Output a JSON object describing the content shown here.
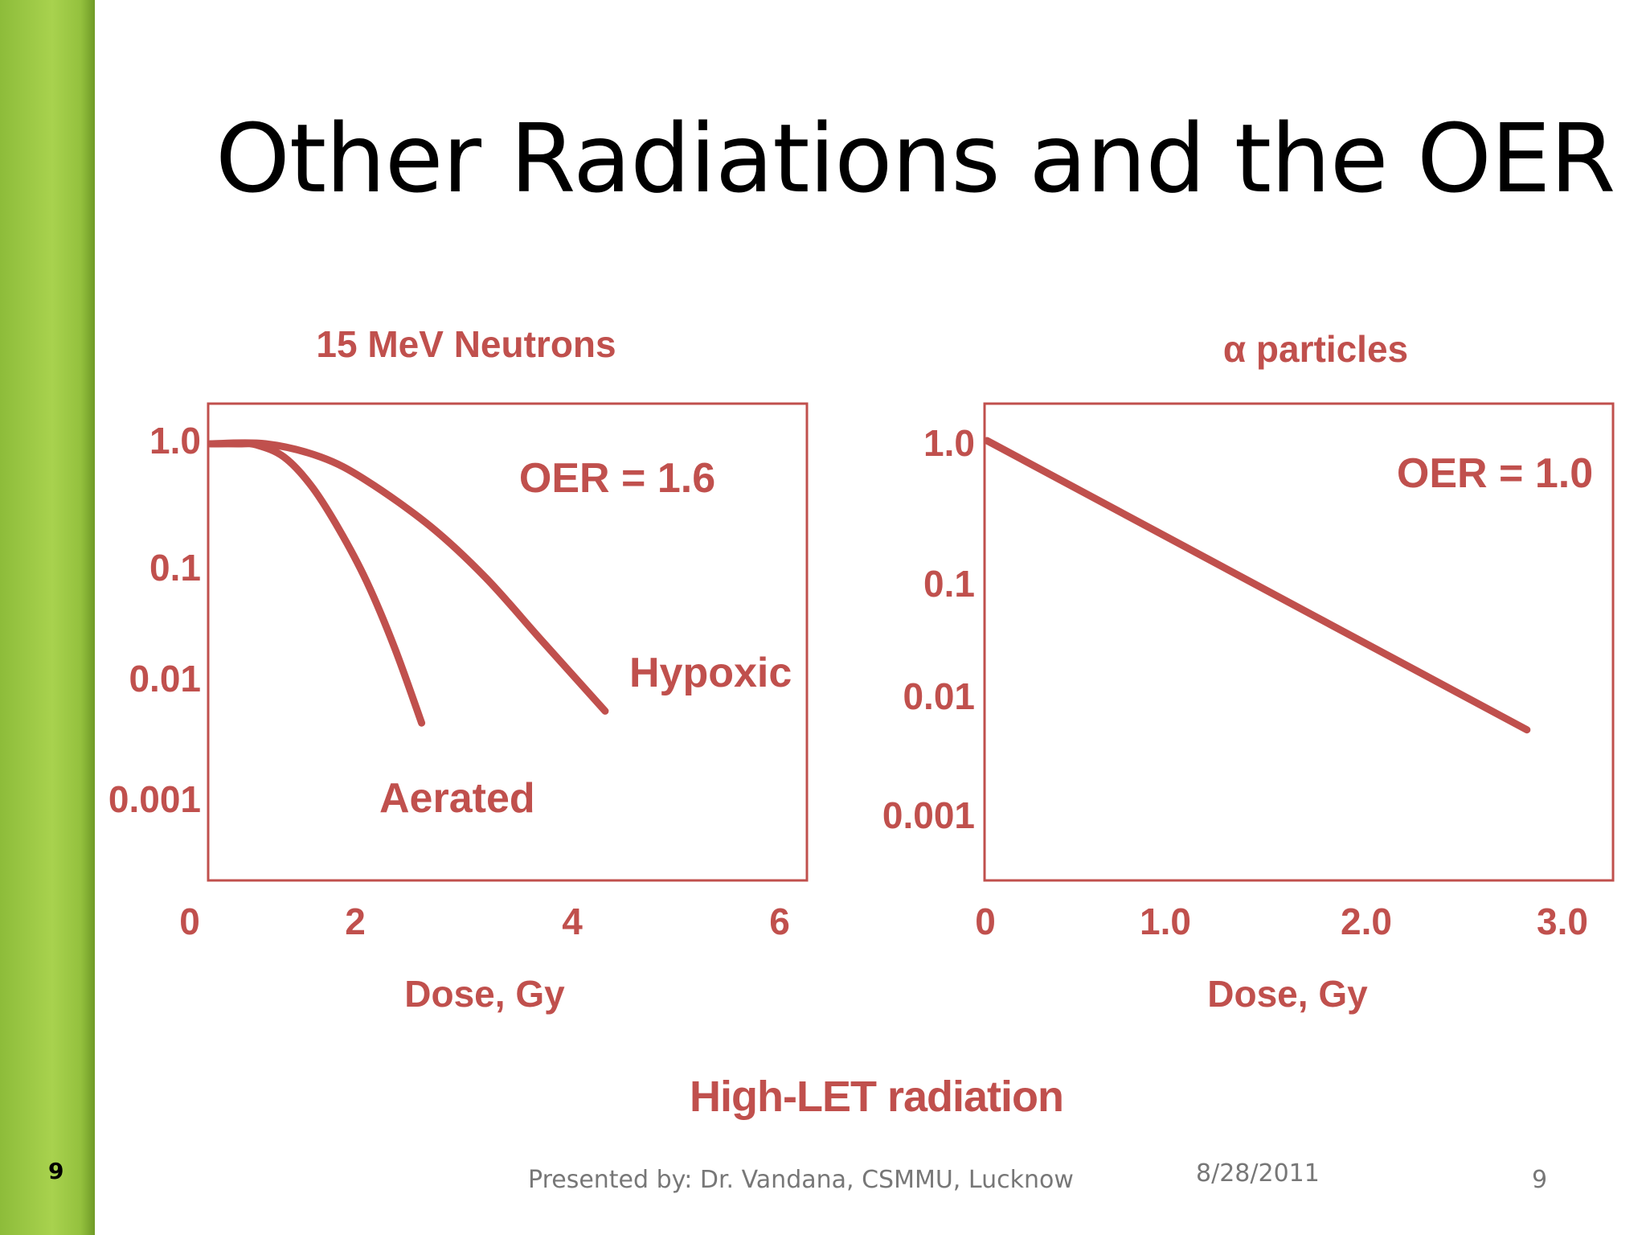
{
  "slide": {
    "title": "Other Radiations and the OER",
    "side_number": "9",
    "caption": "High-LET radiation",
    "footer": {
      "presenter": "Presented by: Dr. Vandana, CSMMU, Lucknow",
      "date": "8/28/2011",
      "page": "9"
    },
    "accent_color": "#c0504d",
    "sidebar_color": "#a8d24e"
  },
  "chart_data": [
    {
      "type": "line",
      "title": "15 MeV Neutrons",
      "xlabel": "Dose, Gy",
      "ylabel": "",
      "y_scale": "log",
      "xlim": [
        0,
        6
      ],
      "ylim": [
        0.0003,
        2
      ],
      "x_ticks": [
        0,
        2,
        4,
        6
      ],
      "x_tick_labels": [
        "0",
        "2",
        "4",
        "6"
      ],
      "y_ticks": [
        1,
        0.1,
        0.01,
        0.001
      ],
      "y_tick_labels": [
        "1.0",
        "0.1",
        "0.01",
        "0.001"
      ],
      "annotation": "OER = 1.6",
      "series": [
        {
          "name": "Aerated",
          "x": [
            0,
            0.3,
            0.5,
            0.8,
            1.1,
            1.4,
            1.7,
            2.0,
            2.3
          ],
          "y": [
            1.0,
            1.0,
            0.98,
            0.78,
            0.45,
            0.2,
            0.075,
            0.022,
            0.0052
          ]
        },
        {
          "name": "Hypoxic",
          "x": [
            0,
            0.6,
            1.2,
            1.7,
            2.4,
            3.0,
            3.6,
            4.3
          ],
          "y": [
            1.0,
            1.0,
            0.78,
            0.5,
            0.21,
            0.08,
            0.025,
            0.0065
          ]
        }
      ]
    },
    {
      "type": "line",
      "title": "α particles",
      "xlabel": "Dose, Gy",
      "ylabel": "",
      "y_scale": "log",
      "xlim": [
        0,
        3.0
      ],
      "ylim": [
        0.0003,
        2
      ],
      "x_ticks": [
        0,
        1.0,
        2.0,
        3.0
      ],
      "x_tick_labels": [
        "0",
        "1.0",
        "2.0",
        "3.0"
      ],
      "y_ticks": [
        1,
        0.1,
        0.01,
        0.001
      ],
      "y_tick_labels": [
        "1.0",
        "0.1",
        "0.01",
        "0.001"
      ],
      "annotation": "OER = 1.0",
      "series": [
        {
          "name": "",
          "x": [
            0,
            2.78
          ],
          "y": [
            1.0,
            0.004
          ]
        }
      ]
    }
  ]
}
